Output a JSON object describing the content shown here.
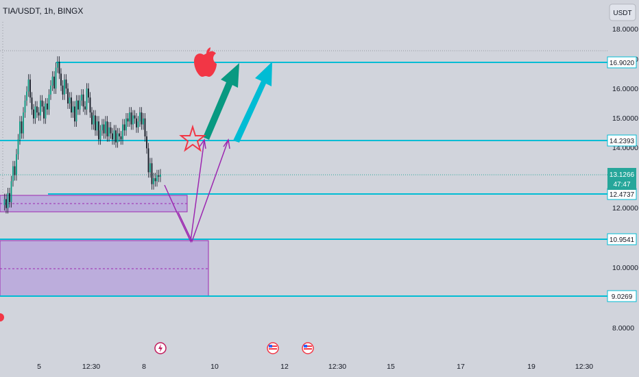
{
  "header": {
    "symbol_line": "TIA/USDT, 1h, BINGX"
  },
  "currency_button": {
    "label": "USDT"
  },
  "chart_data": {
    "type": "candlestick",
    "title": "TIA/USDT, 1h, BINGX",
    "price_axis": {
      "range": [
        7.5,
        18.5
      ],
      "ticks": [
        "18.0000",
        "17.0000",
        "16.0000",
        "15.0000",
        "14.0000",
        "12.0000",
        "10.0000",
        "8.0000"
      ]
    },
    "time_axis": {
      "ticks": [
        "5",
        "12:30",
        "8",
        "10",
        "12",
        "12:30",
        "15",
        "17",
        "19",
        "12:30"
      ]
    },
    "horizontal_levels": [
      {
        "value": 16.902,
        "label": "16.9020"
      },
      {
        "value": 14.2393,
        "label": "14.2393"
      },
      {
        "value": 12.4737,
        "label": "12.4737"
      },
      {
        "value": 10.9541,
        "label": "10.9541"
      },
      {
        "value": 9.0269,
        "label": "9.0269"
      }
    ],
    "current_price": {
      "value": 13.1266,
      "label": "13.1266",
      "countdown": "47:47"
    },
    "zones": [
      {
        "name": "demand-zone-upper",
        "from": 11.9,
        "to": 12.45
      },
      {
        "name": "demand-zone-lower",
        "from": 9.05,
        "to": 10.9
      }
    ],
    "price_path": [
      12.1,
      12.3,
      12.0,
      12.5,
      12.2,
      12.9,
      13.4,
      13.1,
      13.8,
      14.3,
      14.9,
      14.5,
      15.2,
      15.6,
      15.9,
      16.3,
      15.7,
      15.3,
      15.0,
      15.4,
      15.2,
      15.1,
      15.6,
      15.4,
      15.0,
      15.5,
      15.3,
      15.8,
      16.1,
      16.4,
      16.0,
      16.7,
      16.9,
      16.5,
      16.1,
      15.8,
      16.3,
      16.0,
      15.5,
      15.7,
      15.2,
      15.4,
      14.9,
      15.6,
      15.3,
      15.6,
      15.8,
      15.4,
      15.3,
      16.0,
      15.7,
      15.2,
      14.8,
      15.1,
      14.6,
      14.9,
      14.3,
      14.6,
      14.8,
      14.5,
      14.9,
      14.4,
      14.7,
      14.5,
      14.3,
      14.6,
      14.2,
      14.5,
      14.4,
      14.3,
      14.8,
      14.6,
      15.0,
      14.9,
      15.2,
      14.8,
      15.1,
      15.0,
      14.7,
      14.9,
      15.2,
      14.8,
      15.0,
      14.4,
      14.0,
      13.2,
      13.5,
      12.8,
      13.0,
      12.9,
      13.1,
      13.05,
      13.1266
    ],
    "colors": {
      "background": "#d1d4dc",
      "level_line": "#00bcd4",
      "zone_fill": "#b39ddb",
      "zone_border": "#9c27b0",
      "path_line": "#9c27b0",
      "arrow_green": "#089981",
      "arrow_cyan": "#00bcd4",
      "star": "#f23645",
      "current_price_tag": "#26a69a"
    },
    "annotations": [
      "apple-icon",
      "star-icon",
      "green-up-arrow",
      "cyan-up-arrow",
      "projection-path"
    ]
  }
}
